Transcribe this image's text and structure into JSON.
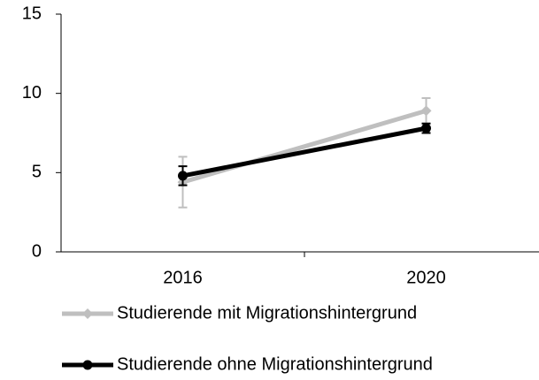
{
  "chart_data": {
    "type": "line",
    "categories": [
      "2016",
      "2020"
    ],
    "series": [
      {
        "name": "Studierende mit Migrationshintergrund",
        "color": "#bfbfbf",
        "marker": "diamond",
        "values": [
          4.4,
          8.9
        ],
        "errors": [
          1.6,
          0.8
        ]
      },
      {
        "name": "Studierende ohne Migrationshintergrund",
        "color": "#000000",
        "marker": "circle",
        "values": [
          4.8,
          7.8
        ],
        "errors": [
          0.6,
          0.3
        ]
      }
    ],
    "ylim": [
      0,
      15
    ],
    "yticks": [
      0,
      5,
      10,
      15
    ],
    "grid": false,
    "legend": "bottom"
  }
}
